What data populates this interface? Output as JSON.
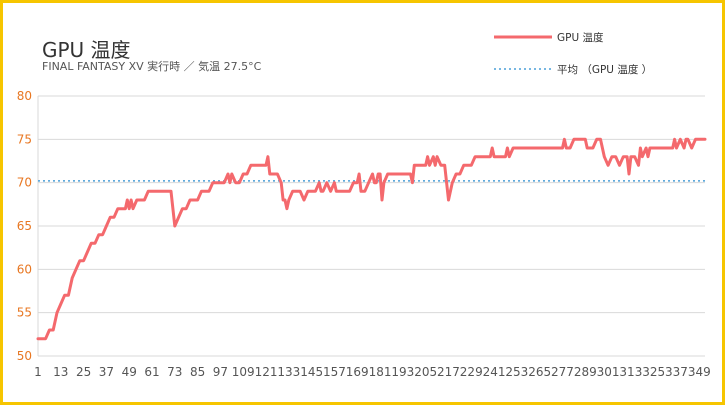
{
  "chart_data": {
    "type": "line",
    "title": "GPU 温度",
    "subtitle": "FINAL FANTASY XV 実行時 ／ 気温 27.5°C",
    "xlabel": "",
    "ylabel": "",
    "ylim": [
      50,
      80
    ],
    "yticks": [
      50,
      55,
      60,
      65,
      70,
      75,
      80
    ],
    "xlim": [
      1,
      352
    ],
    "xticks": [
      1,
      13,
      25,
      37,
      49,
      61,
      73,
      85,
      97,
      109,
      121,
      133,
      145,
      157,
      169,
      181,
      193,
      205,
      217,
      229,
      241,
      253,
      265,
      277,
      289,
      301,
      313,
      325,
      337,
      349
    ],
    "grid": true,
    "legend_position": "top-right",
    "colors": {
      "gpu": "#f4696d",
      "avg": "#4a9fd8",
      "ytick": "#e87722",
      "frame": "#f6c500"
    },
    "series": [
      {
        "name": "GPU 温度",
        "style": "solid",
        "points": [
          [
            1,
            52
          ],
          [
            5,
            52
          ],
          [
            7,
            53
          ],
          [
            9,
            53
          ],
          [
            11,
            55
          ],
          [
            13,
            56
          ],
          [
            15,
            57
          ],
          [
            17,
            57
          ],
          [
            19,
            59
          ],
          [
            21,
            60
          ],
          [
            23,
            61
          ],
          [
            25,
            61
          ],
          [
            27,
            62
          ],
          [
            29,
            63
          ],
          [
            31,
            63
          ],
          [
            33,
            64
          ],
          [
            35,
            64
          ],
          [
            37,
            65
          ],
          [
            39,
            66
          ],
          [
            41,
            66
          ],
          [
            43,
            67
          ],
          [
            45,
            67
          ],
          [
            47,
            67
          ],
          [
            48,
            68
          ],
          [
            49,
            67
          ],
          [
            50,
            68
          ],
          [
            51,
            67
          ],
          [
            53,
            68
          ],
          [
            55,
            68
          ],
          [
            57,
            68
          ],
          [
            59,
            69
          ],
          [
            61,
            69
          ],
          [
            63,
            69
          ],
          [
            65,
            69
          ],
          [
            67,
            69
          ],
          [
            69,
            69
          ],
          [
            71,
            69
          ],
          [
            72,
            67
          ],
          [
            73,
            65
          ],
          [
            75,
            66
          ],
          [
            77,
            67
          ],
          [
            79,
            67
          ],
          [
            81,
            68
          ],
          [
            83,
            68
          ],
          [
            85,
            68
          ],
          [
            87,
            69
          ],
          [
            89,
            69
          ],
          [
            91,
            69
          ],
          [
            93,
            70
          ],
          [
            95,
            70
          ],
          [
            97,
            70
          ],
          [
            99,
            70
          ],
          [
            101,
            71
          ],
          [
            102,
            70
          ],
          [
            103,
            71
          ],
          [
            105,
            70
          ],
          [
            107,
            70
          ],
          [
            109,
            71
          ],
          [
            111,
            71
          ],
          [
            113,
            72
          ],
          [
            115,
            72
          ],
          [
            117,
            72
          ],
          [
            119,
            72
          ],
          [
            121,
            72
          ],
          [
            122,
            73
          ],
          [
            123,
            71
          ],
          [
            125,
            71
          ],
          [
            127,
            71
          ],
          [
            129,
            70
          ],
          [
            130,
            68
          ],
          [
            131,
            68
          ],
          [
            132,
            67
          ],
          [
            133,
            68
          ],
          [
            135,
            69
          ],
          [
            137,
            69
          ],
          [
            139,
            69
          ],
          [
            141,
            68
          ],
          [
            143,
            69
          ],
          [
            145,
            69
          ],
          [
            147,
            69
          ],
          [
            149,
            70
          ],
          [
            150,
            69
          ],
          [
            151,
            69
          ],
          [
            153,
            70
          ],
          [
            155,
            69
          ],
          [
            157,
            70
          ],
          [
            158,
            69
          ],
          [
            159,
            69
          ],
          [
            161,
            69
          ],
          [
            163,
            69
          ],
          [
            165,
            69
          ],
          [
            167,
            70
          ],
          [
            169,
            70
          ],
          [
            170,
            71
          ],
          [
            171,
            69
          ],
          [
            173,
            69
          ],
          [
            175,
            70
          ],
          [
            177,
            71
          ],
          [
            178,
            70
          ],
          [
            179,
            70
          ],
          [
            180,
            71
          ],
          [
            181,
            71
          ],
          [
            182,
            68
          ],
          [
            183,
            70
          ],
          [
            185,
            71
          ],
          [
            187,
            71
          ],
          [
            189,
            71
          ],
          [
            191,
            71
          ],
          [
            193,
            71
          ],
          [
            195,
            71
          ],
          [
            197,
            71
          ],
          [
            198,
            70
          ],
          [
            199,
            72
          ],
          [
            201,
            72
          ],
          [
            203,
            72
          ],
          [
            205,
            72
          ],
          [
            206,
            73
          ],
          [
            207,
            72
          ],
          [
            209,
            73
          ],
          [
            210,
            72
          ],
          [
            211,
            73
          ],
          [
            213,
            72
          ],
          [
            215,
            72
          ],
          [
            216,
            70
          ],
          [
            217,
            68
          ],
          [
            219,
            70
          ],
          [
            221,
            71
          ],
          [
            223,
            71
          ],
          [
            225,
            72
          ],
          [
            227,
            72
          ],
          [
            229,
            72
          ],
          [
            231,
            73
          ],
          [
            233,
            73
          ],
          [
            235,
            73
          ],
          [
            237,
            73
          ],
          [
            239,
            73
          ],
          [
            240,
            74
          ],
          [
            241,
            73
          ],
          [
            243,
            73
          ],
          [
            245,
            73
          ],
          [
            247,
            73
          ],
          [
            248,
            74
          ],
          [
            249,
            73
          ],
          [
            251,
            74
          ],
          [
            253,
            74
          ],
          [
            255,
            74
          ],
          [
            257,
            74
          ],
          [
            259,
            74
          ],
          [
            261,
            74
          ],
          [
            263,
            74
          ],
          [
            265,
            74
          ],
          [
            267,
            74
          ],
          [
            269,
            74
          ],
          [
            271,
            74
          ],
          [
            273,
            74
          ],
          [
            275,
            74
          ],
          [
            277,
            74
          ],
          [
            278,
            75
          ],
          [
            279,
            74
          ],
          [
            281,
            74
          ],
          [
            283,
            75
          ],
          [
            285,
            75
          ],
          [
            287,
            75
          ],
          [
            289,
            75
          ],
          [
            290,
            74
          ],
          [
            291,
            74
          ],
          [
            293,
            74
          ],
          [
            295,
            75
          ],
          [
            297,
            75
          ],
          [
            298,
            74
          ],
          [
            299,
            73
          ],
          [
            301,
            72
          ],
          [
            303,
            73
          ],
          [
            305,
            73
          ],
          [
            307,
            72
          ],
          [
            309,
            73
          ],
          [
            311,
            73
          ],
          [
            312,
            71
          ],
          [
            313,
            73
          ],
          [
            315,
            73
          ],
          [
            317,
            72
          ],
          [
            318,
            74
          ],
          [
            319,
            73
          ],
          [
            321,
            74
          ],
          [
            322,
            73
          ],
          [
            323,
            74
          ],
          [
            325,
            74
          ],
          [
            327,
            74
          ],
          [
            329,
            74
          ],
          [
            331,
            74
          ],
          [
            333,
            74
          ],
          [
            335,
            74
          ],
          [
            336,
            75
          ],
          [
            337,
            74
          ],
          [
            339,
            75
          ],
          [
            341,
            74
          ],
          [
            342,
            75
          ],
          [
            343,
            75
          ],
          [
            345,
            74
          ],
          [
            347,
            75
          ],
          [
            349,
            75
          ],
          [
            351,
            75
          ],
          [
            352,
            75
          ]
        ]
      },
      {
        "name": "平均 （GPU 温度 ）",
        "style": "dotted",
        "value": 70.2
      }
    ]
  }
}
